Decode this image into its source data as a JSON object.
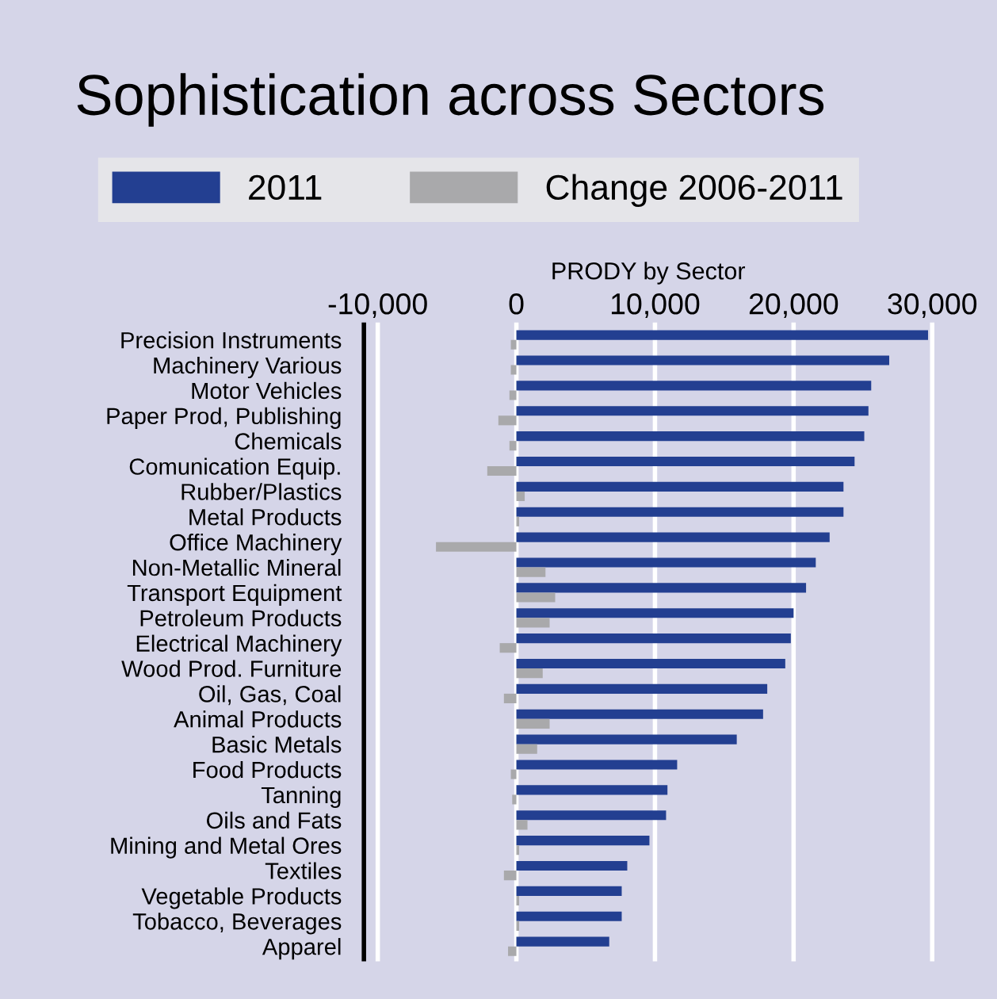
{
  "chart_data": {
    "type": "bar",
    "orientation": "horizontal",
    "title": "Sophistication across Sectors",
    "xlabel": "PRODY by Sector",
    "categories": [
      "Precision Instruments",
      "Machinery Various",
      "Motor Vehicles",
      "Paper Prod, Publishing",
      "Chemicals",
      "Comunication Equip.",
      "Rubber/Plastics",
      "Metal Products",
      "Office Machinery",
      "Non-Metallic Mineral",
      "Transport Equipment",
      "Petroleum Products",
      "Electrical Machinery",
      "Wood Prod. Furniture",
      "Oil, Gas, Coal",
      "Animal Products",
      "Basic Metals",
      "Food Products",
      "Tanning",
      "Oils and Fats",
      "Mining and Metal Ores",
      "Textiles",
      "Vegetable Products",
      "Tobacco, Beverages",
      "Apparel"
    ],
    "series": [
      {
        "name": "2011",
        "color": "#233f91",
        "values": [
          29700,
          26900,
          25600,
          25400,
          25100,
          24400,
          23600,
          23600,
          22600,
          21600,
          20900,
          20000,
          19800,
          19400,
          18100,
          17800,
          15900,
          11600,
          10900,
          10800,
          9600,
          8000,
          7600,
          7600,
          6700
        ]
      },
      {
        "name": "Change 2006-2011",
        "color": "#a9a9ab",
        "values": [
          -400,
          -400,
          -500,
          -1300,
          -500,
          -2100,
          600,
          200,
          -5800,
          2100,
          2800,
          2400,
          -1200,
          1900,
          -900,
          2400,
          1500,
          -400,
          -300,
          800,
          200,
          -900,
          200,
          200,
          -600
        ]
      }
    ],
    "xlim": [
      -11000,
      30000
    ],
    "xticks": [
      {
        "value": -10000,
        "label": "-10,000"
      },
      0,
      {
        "value": 10000,
        "label": "10,000"
      },
      {
        "value": 20000,
        "label": "20,000"
      },
      {
        "value": 30000,
        "label": "30,000"
      }
    ],
    "grid": "x",
    "legend": "top"
  }
}
